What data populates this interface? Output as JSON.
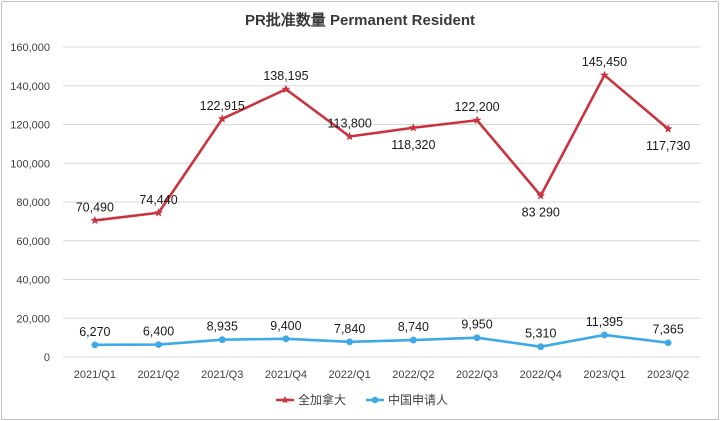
{
  "chart_data": {
    "type": "line",
    "title": "PR批准数量 Permanent Resident",
    "categories": [
      "2021/Q1",
      "2021/Q2",
      "2021/Q3",
      "2021/Q4",
      "2022/Q1",
      "2022/Q2",
      "2022/Q3",
      "2022/Q4",
      "2023/Q1",
      "2023/Q2"
    ],
    "ylim": [
      0,
      160000
    ],
    "yticks": [
      0,
      20000,
      40000,
      60000,
      80000,
      100000,
      120000,
      140000,
      160000
    ],
    "ytick_labels": [
      "0",
      "20,000",
      "40,000",
      "60,000",
      "80,000",
      "100,000",
      "120,000",
      "140,000",
      "160,000"
    ],
    "grid": true,
    "legend_position": "bottom",
    "series": [
      {
        "name": "全加拿大",
        "color": "#c9343f",
        "marker": "star",
        "values": [
          70490,
          74440,
          122915,
          138195,
          113800,
          118320,
          122200,
          83290,
          145450,
          117730
        ],
        "labels": [
          "70,490",
          "74,440",
          "122,915",
          "138,195",
          "113,800",
          "118,320",
          "122,200",
          "83 290",
          "145,450",
          "117,730"
        ],
        "label_positions": [
          "above",
          "above",
          "above",
          "above",
          "above",
          "below",
          "above",
          "below",
          "above",
          "below"
        ]
      },
      {
        "name": "中国申请人",
        "color": "#3fa9e6",
        "marker": "circle",
        "values": [
          6270,
          6400,
          8935,
          9400,
          7840,
          8740,
          9950,
          5310,
          11395,
          7365
        ],
        "labels": [
          "6,270",
          "6,400",
          "8,935",
          "9,400",
          "7,840",
          "8,740",
          "9,950",
          "5,310",
          "11,395",
          "7,365"
        ],
        "label_positions": [
          "above",
          "above",
          "above",
          "above",
          "above",
          "above",
          "above",
          "above",
          "above",
          "above"
        ]
      }
    ]
  }
}
